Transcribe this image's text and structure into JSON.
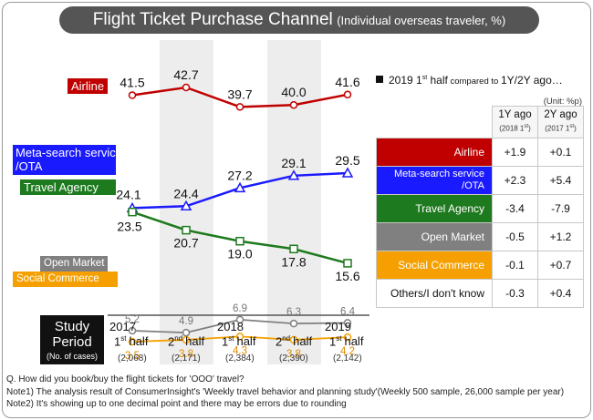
{
  "title": "Flight Ticket Purchase Channel",
  "subtitle": "(Individual overseas traveler, %)",
  "chart_data": {
    "type": "line",
    "categories": [
      "2017 1st half",
      "2017 2nd half",
      "2018 1st half",
      "2018 2nd half",
      "2019 1st half"
    ],
    "series": [
      {
        "name": "Airline",
        "values": [
          41.5,
          42.7,
          39.7,
          40.0,
          41.6
        ],
        "labels": [
          "41.5",
          "42.7",
          "39.7",
          "40.0",
          "41.6"
        ],
        "color": "#c00000"
      },
      {
        "name": "Meta-search service /OTA",
        "values": [
          24.1,
          24.4,
          27.2,
          29.1,
          29.5
        ],
        "labels": [
          "24.1",
          "24.4",
          "27.2",
          "29.1",
          "29.5"
        ],
        "color": "#1a1aff"
      },
      {
        "name": "Travel Agency",
        "values": [
          23.5,
          20.7,
          19.0,
          17.8,
          15.6
        ],
        "labels": [
          "23.5",
          "20.7",
          "19.0",
          "17.8",
          "15.6"
        ],
        "color": "#1e7a1e"
      },
      {
        "name": "Open Market",
        "values": [
          5.2,
          4.9,
          6.9,
          6.3,
          6.4
        ],
        "labels": [
          "5.2",
          "4.9",
          "6.9",
          "6.3",
          "6.4"
        ],
        "color": "#808080"
      },
      {
        "name": "Social Commerce",
        "values": [
          3.5,
          3.8,
          4.3,
          3.8,
          4.2
        ],
        "labels": [
          "3.5",
          "3.8",
          "4.3",
          "3.8",
          "4.2"
        ],
        "color": "#f5a000"
      }
    ]
  },
  "x_axis": {
    "heading": "Study Period",
    "heading_sub": "(No. of cases)",
    "periods": [
      {
        "year": "2017",
        "half_num": "1",
        "half_sup": "st",
        "half_word": "half",
        "cases": "(2,068)"
      },
      {
        "year": "",
        "half_num": "2",
        "half_sup": "nd",
        "half_word": "half",
        "cases": "(2,171)"
      },
      {
        "year": "2018",
        "half_num": "1",
        "half_sup": "st",
        "half_word": "half",
        "cases": "(2,384)"
      },
      {
        "year": "",
        "half_num": "2",
        "half_sup": "nd",
        "half_word": "half",
        "cases": "(2,390)"
      },
      {
        "year": "2019",
        "half_num": "1",
        "half_sup": "st",
        "half_word": "half",
        "cases": "(2,142)"
      }
    ]
  },
  "series_labels": {
    "airline": "Airline",
    "meta_line1": "Meta-search service",
    "meta_line2": "/OTA",
    "travel": "Travel Agency",
    "open": "Open Market",
    "social": "Social Commerce"
  },
  "comparison": {
    "legend_year": "2019 1",
    "legend_sup": "st",
    "legend_half": " half",
    "legend_small": " compared to ",
    "legend_tail": " 1Y/2Y ago…",
    "unit": "(Unit: %p)",
    "col1": {
      "label": "1Y ago",
      "sub_pre": "(2018 1",
      "sup": "st",
      "sub_post": ")"
    },
    "col2": {
      "label": "2Y ago",
      "sub_pre": "(2017 1",
      "sup": "st",
      "sub_post": ")"
    },
    "rows": [
      {
        "label": "Airline",
        "y1": "+1.9",
        "y2": "+0.1",
        "color": "#c00000",
        "text_color": "#ffffff"
      },
      {
        "label": "Meta-search service /OTA",
        "y1": "+2.3",
        "y2": "+5.4",
        "color": "#1a1aff",
        "text_color": "#ffffff"
      },
      {
        "label": "Travel Agency",
        "y1": "-3.4",
        "y2": "-7.9",
        "color": "#1e7a1e",
        "text_color": "#ffffff"
      },
      {
        "label": "Open Market",
        "y1": "-0.5",
        "y2": "+1.2",
        "color": "#808080",
        "text_color": "#ffffff"
      },
      {
        "label": "Social Commerce",
        "y1": "-0.1",
        "y2": "+0.7",
        "color": "#f5a000",
        "text_color": "#ffffff"
      },
      {
        "label": "Others/I don't know",
        "y1": "-0.3",
        "y2": "+0.4",
        "color": "#ffffff",
        "text_color": "#111111"
      }
    ]
  },
  "notes": [
    "Q.  How did you book/buy the flight tickets for 'OOO' travel?",
    "Note1) The analysis result of ConsumerInsight's 'Weekly travel behavior and planning study'(Weekly 500 sample, 26,000 sample per year)",
    "Note2) It's showing up to one decimal point and there may be errors due to rounding"
  ]
}
